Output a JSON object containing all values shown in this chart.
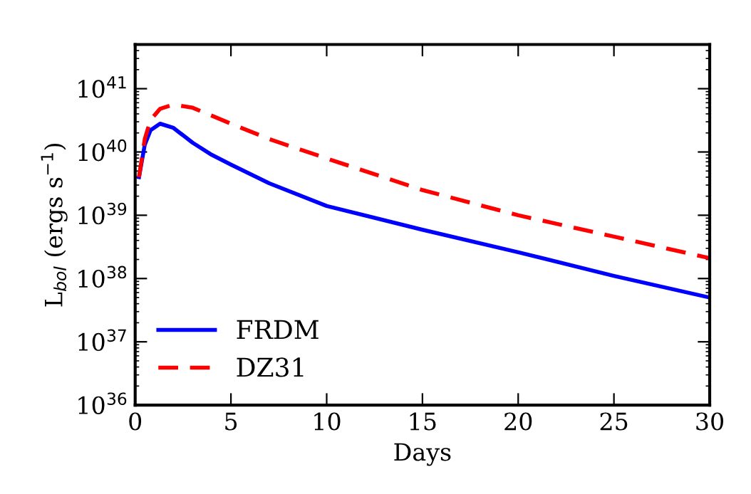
{
  "chart_data": {
    "type": "line",
    "xlabel": "Days",
    "ylabel": "L$_{bol}$ (ergs s$^{−1}$)",
    "log": "y",
    "xlim": [
      0,
      30
    ],
    "ylim": [
      1e+36,
      5e+41
    ],
    "xticks": [
      0,
      5,
      10,
      15,
      20,
      25,
      30
    ],
    "yticks": [
      {
        "value": 1e+36,
        "label": "10$^{36}$"
      },
      {
        "value": 1e+37,
        "label": "10$^{37}$"
      },
      {
        "value": 1e+38,
        "label": "10$^{38}$"
      },
      {
        "value": 1e+39,
        "label": "10$^{39}$"
      },
      {
        "value": 1e+40,
        "label": "10$^{40}$"
      },
      {
        "value": 1e+41,
        "label": "10$^{41}$"
      }
    ],
    "grid": false,
    "legend": "bottom left",
    "series": [
      {
        "name": "FRDM",
        "color": "#0000ff",
        "line_style": "solid",
        "x": [
          0.2,
          0.5,
          0.8,
          1.3,
          2,
          3,
          4,
          5,
          7,
          10,
          15,
          20,
          25,
          30
        ],
        "values": [
          4e+39,
          1.3e+40,
          2.2e+40,
          2.8e+40,
          2.4e+40,
          1.4e+40,
          9e+39,
          6.3e+39,
          3.2e+39,
          1.4e+39,
          5.9e+38,
          2.6e+38,
          1.1e+38,
          5e+37
        ]
      },
      {
        "name": "DZ31",
        "color": "#ff0000",
        "line_style": "dashed",
        "x": [
          0.2,
          0.5,
          0.8,
          1.3,
          2,
          3,
          5,
          7,
          10,
          15,
          20,
          25,
          30
        ],
        "values": [
          4e+39,
          1.6e+40,
          3.2e+40,
          4.8e+40,
          5.6e+40,
          5e+40,
          2.8e+40,
          1.6e+40,
          7.9e+39,
          2.5e+39,
          1e+39,
          4.6e+38,
          2.1e+38
        ]
      }
    ]
  }
}
